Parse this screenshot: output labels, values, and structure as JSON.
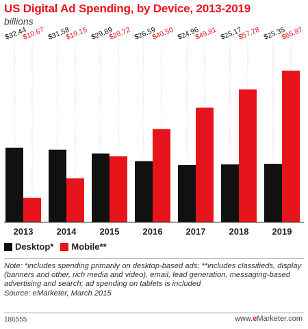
{
  "title": "US Digital Ad Spending, by Device, 2013-2019",
  "subtitle": "billions",
  "colors": {
    "accent": "#e8141c",
    "desktop": "#111111",
    "mobile": "#e8141c"
  },
  "chart_data": {
    "type": "bar",
    "title": "US Digital Ad Spending, by Device, 2013-2019",
    "subtitle": "billions",
    "categories": [
      "2013",
      "2014",
      "2015",
      "2016",
      "2017",
      "2018",
      "2019"
    ],
    "series": [
      {
        "name": "Desktop*",
        "color": "#111111",
        "values": [
          32.44,
          31.58,
          29.89,
          26.59,
          24.96,
          25.17,
          25.35
        ],
        "labels": [
          "$32.44",
          "$31.58",
          "$29.89",
          "$26.59",
          "$24.96",
          "$25.17",
          "$25.35"
        ]
      },
      {
        "name": "Mobile**",
        "color": "#e8141c",
        "values": [
          10.67,
          19.15,
          28.72,
          40.5,
          49.81,
          57.78,
          65.87
        ],
        "labels": [
          "$10.67",
          "$19.15",
          "$28.72",
          "$40.50",
          "$49.81",
          "$57.78",
          "$65.87"
        ]
      }
    ],
    "ylim": [
      0,
      66
    ],
    "grid": false,
    "legend_position": "bottom-left"
  },
  "legend": {
    "desktop": "Desktop*",
    "mobile": "Mobile**"
  },
  "note": "Note: *includes spending primarily on desktop-based ads; **includes classifieds, display (banners and other, rich media and video), email, lead generation, messaging-based advertising and search; ad spending on tablets is included",
  "source": "Source: eMarketer, March 2015",
  "footer": {
    "id": "186555",
    "brand_prefix": "www.",
    "brand_accent": "e",
    "brand_suffix": "Marketer.com"
  }
}
